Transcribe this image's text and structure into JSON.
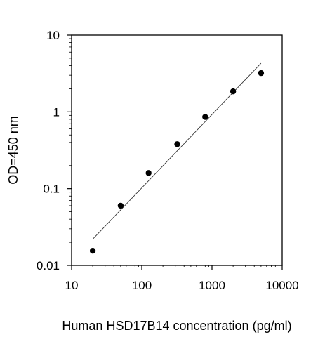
{
  "chart_data": {
    "type": "scatter",
    "title": "",
    "xlabel": "Human HSD17B14 concentration (pg/ml)",
    "ylabel": "OD=450 nm",
    "x_scale": "log",
    "y_scale": "log",
    "xlim": [
      10,
      10000
    ],
    "ylim": [
      0.01,
      10
    ],
    "x_ticks": [
      10,
      100,
      1000,
      10000
    ],
    "x_tick_labels": [
      "10",
      "100",
      "1000",
      "10000"
    ],
    "y_ticks": [
      0.01,
      0.1,
      1,
      10
    ],
    "y_tick_labels": [
      "0.01",
      "0.1",
      "1",
      "10"
    ],
    "grid": false,
    "legend": "none",
    "marker_color": "#000000",
    "series": [
      {
        "x": [
          20,
          50,
          125,
          320,
          800,
          2000,
          5000
        ],
        "y": [
          0.0155,
          0.06,
          0.16,
          0.38,
          0.86,
          1.85,
          3.2
        ]
      }
    ],
    "fit_line": {
      "x": [
        20,
        5000
      ],
      "y": [
        0.022,
        4.3
      ]
    }
  }
}
